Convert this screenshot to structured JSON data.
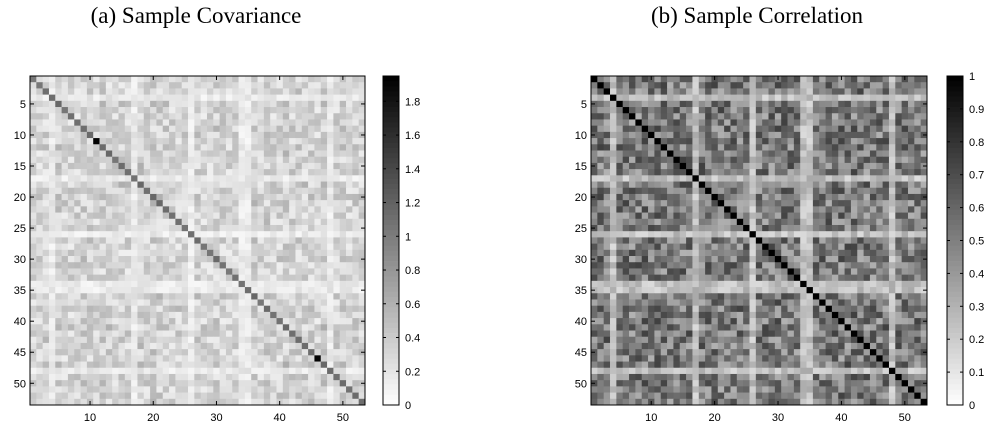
{
  "chart_data": [
    {
      "type": "heatmap",
      "title": "(a) Sample Covariance",
      "colormap": "gray-reversed",
      "matrix_size": 53,
      "xlim": [
        0.5,
        53.5
      ],
      "ylim": [
        0.5,
        53.5
      ],
      "x_ticks": [
        10,
        20,
        30,
        40,
        50
      ],
      "y_ticks": [
        5,
        10,
        15,
        20,
        25,
        30,
        35,
        40,
        45,
        50
      ],
      "diagonal_value": 1.1,
      "typical_offdiag_range": [
        0.15,
        0.65
      ],
      "max_value_shown": 1.93,
      "colorbar": {
        "range": [
          0,
          1.95
        ],
        "ticks": [
          0,
          0.2,
          0.4,
          0.6,
          0.8,
          1,
          1.2,
          1.4,
          1.6,
          1.8
        ],
        "tick_labels": [
          "0",
          "0.2",
          "0.4",
          "0.6",
          "0.8",
          "1",
          "1.2",
          "1.4",
          "1.6",
          "1.8"
        ]
      },
      "light_bands": [
        4,
        17,
        26,
        34,
        35,
        48
      ]
    },
    {
      "type": "heatmap",
      "title": "(b) Sample Correlation",
      "colormap": "gray-reversed",
      "matrix_size": 53,
      "xlim": [
        0.5,
        53.5
      ],
      "ylim": [
        0.5,
        53.5
      ],
      "x_ticks": [
        10,
        20,
        30,
        40,
        50
      ],
      "y_ticks": [
        5,
        10,
        15,
        20,
        25,
        30,
        35,
        40,
        45,
        50
      ],
      "diagonal_value": 1,
      "typical_offdiag_range": [
        0.3,
        0.75
      ],
      "colorbar": {
        "range": [
          0,
          1
        ],
        "ticks": [
          0,
          0.1,
          0.2,
          0.3,
          0.4,
          0.5,
          0.6,
          0.7,
          0.8,
          0.9,
          1
        ],
        "tick_labels": [
          "0",
          "0.1",
          "0.2",
          "0.3",
          "0.4",
          "0.5",
          "0.6",
          "0.7",
          "0.8",
          "0.9",
          "1"
        ]
      },
      "light_bands": [
        4,
        17,
        26,
        34,
        35,
        48
      ]
    }
  ]
}
